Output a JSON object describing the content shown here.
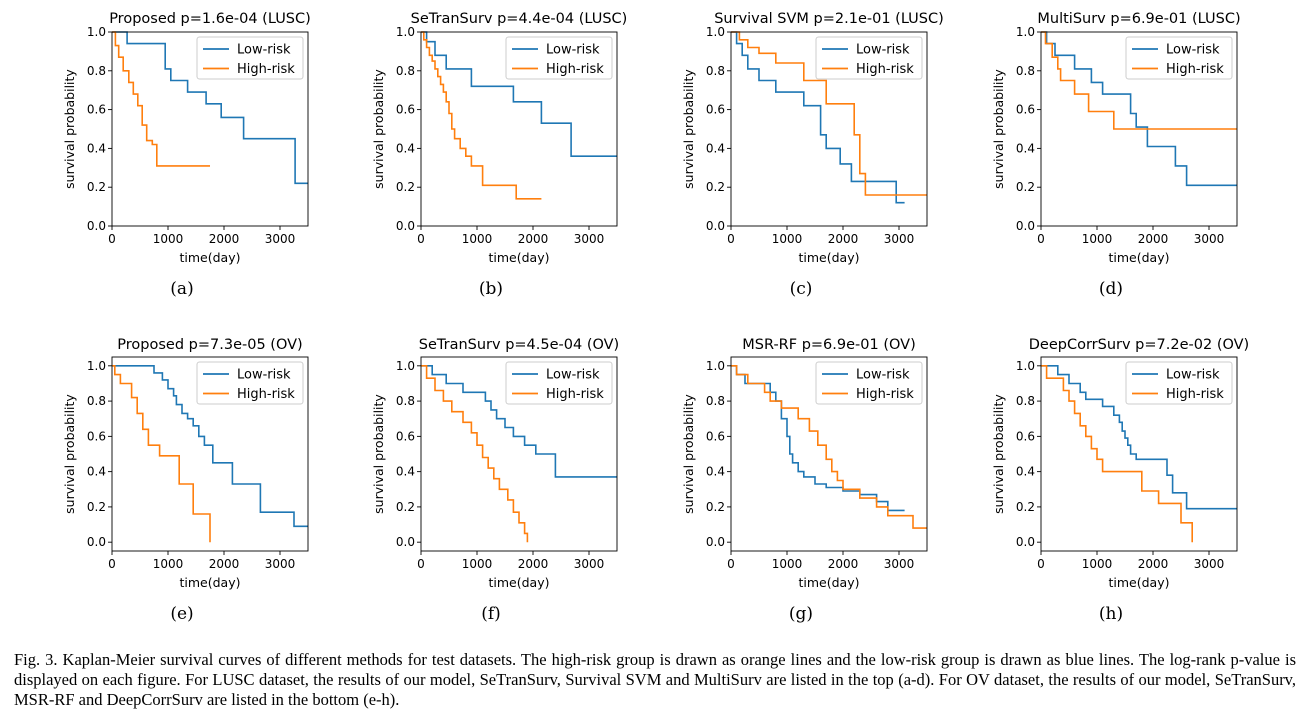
{
  "caption": "Fig. 3.  Kaplan-Meier survival curves of different methods for test datasets. The high-risk group is drawn as orange lines and the low-risk group is drawn as blue lines. The log-rank p-value is displayed on each figure. For LUSC dataset, the results of our model, SeTranSurv, Survival SVM and MultiSurv are listed in the top (a-d). For OV dataset, the results of our model, SeTranSurv, MSR-RF and DeepCorrSurv are listed in the bottom (e-h).",
  "colors": {
    "low_risk": "#1f77b4",
    "high_risk": "#ff7f0e"
  },
  "chart_data": [
    {
      "type": "line",
      "label": "(a)",
      "title": "Proposed   p=1.6e-04   (LUSC)",
      "xlabel": "time(day)",
      "ylabel": "survival probability",
      "xlim": [
        0,
        3500
      ],
      "ylim": [
        0,
        1.0
      ],
      "xticks": [
        0,
        1000,
        2000,
        3000
      ],
      "yticks": [
        "0.0",
        "0.2",
        "0.4",
        "0.6",
        "0.8",
        "1.0"
      ],
      "legend_position": "top-right",
      "series": [
        {
          "name": "Low-risk",
          "x": [
            0,
            270,
            950,
            1050,
            1350,
            1680,
            1950,
            2350,
            3270,
            3500
          ],
          "y": [
            1.0,
            0.94,
            0.81,
            0.75,
            0.69,
            0.63,
            0.56,
            0.45,
            0.22,
            0.22
          ]
        },
        {
          "name": "High-risk",
          "x": [
            0,
            60,
            120,
            200,
            300,
            380,
            460,
            540,
            620,
            720,
            800,
            1750
          ],
          "y": [
            1.0,
            0.93,
            0.87,
            0.8,
            0.74,
            0.68,
            0.62,
            0.52,
            0.44,
            0.42,
            0.31,
            0.31
          ]
        }
      ]
    },
    {
      "type": "line",
      "label": "(b)",
      "title": "SeTranSurv   p=4.4e-04   (LUSC)",
      "xlabel": "time(day)",
      "ylabel": "survival probability",
      "xlim": [
        0,
        3500
      ],
      "ylim": [
        0,
        1.0
      ],
      "xticks": [
        0,
        1000,
        2000,
        3000
      ],
      "yticks": [
        "0.0",
        "0.2",
        "0.4",
        "0.6",
        "0.8",
        "1.0"
      ],
      "legend_position": "top-right",
      "series": [
        {
          "name": "Low-risk",
          "x": [
            0,
            100,
            250,
            450,
            900,
            1650,
            2150,
            2680,
            3500
          ],
          "y": [
            1.0,
            0.95,
            0.88,
            0.81,
            0.72,
            0.64,
            0.53,
            0.36,
            0.36
          ]
        },
        {
          "name": "High-risk",
          "x": [
            0,
            50,
            100,
            150,
            200,
            250,
            300,
            350,
            400,
            450,
            500,
            550,
            600,
            700,
            800,
            900,
            1100,
            1700,
            2150
          ],
          "y": [
            1.0,
            0.96,
            0.92,
            0.88,
            0.85,
            0.81,
            0.77,
            0.73,
            0.69,
            0.64,
            0.58,
            0.5,
            0.45,
            0.4,
            0.36,
            0.31,
            0.21,
            0.14,
            0.14
          ]
        }
      ]
    },
    {
      "type": "line",
      "label": "(c)",
      "title": "Survival SVM p=2.1e-01 (LUSC)",
      "xlabel": "time(day)",
      "ylabel": "survival probability",
      "xlim": [
        0,
        3500
      ],
      "ylim": [
        0,
        1.0
      ],
      "xticks": [
        0,
        1000,
        2000,
        3000
      ],
      "yticks": [
        "0.0",
        "0.2",
        "0.4",
        "0.6",
        "0.8",
        "1.0"
      ],
      "legend_position": "top-right",
      "series": [
        {
          "name": "Low-risk",
          "x": [
            0,
            100,
            200,
            300,
            500,
            800,
            1300,
            1600,
            1700,
            1950,
            2150,
            2950,
            3100
          ],
          "y": [
            1.0,
            0.94,
            0.88,
            0.81,
            0.75,
            0.69,
            0.62,
            0.47,
            0.4,
            0.32,
            0.23,
            0.12,
            0.12
          ]
        },
        {
          "name": "High-risk",
          "x": [
            0,
            150,
            300,
            500,
            800,
            1300,
            1700,
            2200,
            2300,
            2400,
            3500
          ],
          "y": [
            1.0,
            0.96,
            0.92,
            0.89,
            0.84,
            0.75,
            0.63,
            0.47,
            0.27,
            0.16,
            0.16
          ]
        }
      ]
    },
    {
      "type": "line",
      "label": "(d)",
      "title": "MultiSurv    p=6.9e-01   (LUSC)",
      "xlabel": "time(day)",
      "ylabel": "survival probability",
      "xlim": [
        0,
        3500
      ],
      "ylim": [
        0,
        1.0
      ],
      "xticks": [
        0,
        1000,
        2000,
        3000
      ],
      "yticks": [
        "0.0",
        "0.2",
        "0.4",
        "0.6",
        "0.8",
        "1.0"
      ],
      "legend_position": "top-right",
      "series": [
        {
          "name": "Low-risk",
          "x": [
            0,
            100,
            250,
            600,
            900,
            1100,
            1600,
            1700,
            1900,
            2400,
            2600,
            3500
          ],
          "y": [
            1.0,
            0.94,
            0.88,
            0.81,
            0.74,
            0.68,
            0.58,
            0.51,
            0.41,
            0.31,
            0.21,
            0.21
          ]
        },
        {
          "name": "High-risk",
          "x": [
            0,
            80,
            200,
            300,
            350,
            600,
            850,
            1300,
            3500
          ],
          "y": [
            1.0,
            0.94,
            0.87,
            0.81,
            0.75,
            0.68,
            0.59,
            0.5,
            0.5
          ]
        }
      ]
    },
    {
      "type": "line",
      "label": "(e)",
      "title": "Proposed     p=7.3e-05       (OV)",
      "xlabel": "time(day)",
      "ylabel": "survival probability",
      "xlim": [
        0,
        3500
      ],
      "ylim": [
        0,
        1.0
      ],
      "xticks": [
        0,
        1000,
        2000,
        3000
      ],
      "yticks": [
        "0.0",
        "0.2",
        "0.4",
        "0.6",
        "0.8",
        "1.0"
      ],
      "legend_position": "top-right",
      "series": [
        {
          "name": "Low-risk",
          "x": [
            0,
            750,
            900,
            1000,
            1100,
            1150,
            1250,
            1350,
            1450,
            1550,
            1650,
            1800,
            2150,
            2650,
            3250,
            3500
          ],
          "y": [
            1.0,
            0.96,
            0.92,
            0.87,
            0.83,
            0.78,
            0.73,
            0.7,
            0.66,
            0.6,
            0.55,
            0.45,
            0.33,
            0.17,
            0.09,
            0.09
          ]
        },
        {
          "name": "High-risk",
          "x": [
            0,
            50,
            150,
            350,
            450,
            550,
            650,
            850,
            1200,
            1450,
            1750
          ],
          "y": [
            1.0,
            0.95,
            0.9,
            0.82,
            0.73,
            0.64,
            0.55,
            0.49,
            0.33,
            0.16,
            0.0
          ]
        }
      ]
    },
    {
      "type": "line",
      "label": "(f)",
      "title": "SeTranSurv    p=4.5e-04   (OV)",
      "xlabel": "time(day)",
      "ylabel": "survival probability",
      "xlim": [
        0,
        3500
      ],
      "ylim": [
        0,
        1.0
      ],
      "xticks": [
        0,
        1000,
        2000,
        3000
      ],
      "yticks": [
        "0.0",
        "0.2",
        "0.4",
        "0.6",
        "0.8",
        "1.0"
      ],
      "legend_position": "top-right",
      "series": [
        {
          "name": "Low-risk",
          "x": [
            0,
            200,
            450,
            750,
            1150,
            1250,
            1350,
            1500,
            1650,
            1850,
            2050,
            2400,
            3500
          ],
          "y": [
            1.0,
            0.95,
            0.9,
            0.85,
            0.8,
            0.75,
            0.7,
            0.65,
            0.6,
            0.55,
            0.5,
            0.37,
            0.37
          ]
        },
        {
          "name": "High-risk",
          "x": [
            0,
            100,
            250,
            400,
            550,
            750,
            900,
            1000,
            1100,
            1200,
            1300,
            1400,
            1550,
            1650,
            1750,
            1850,
            1900
          ],
          "y": [
            1.0,
            0.93,
            0.86,
            0.8,
            0.74,
            0.68,
            0.62,
            0.55,
            0.48,
            0.42,
            0.36,
            0.3,
            0.24,
            0.17,
            0.11,
            0.05,
            0.0
          ]
        }
      ]
    },
    {
      "type": "line",
      "label": "(g)",
      "title": "MSR-RF          p=6.9e-01        (OV)",
      "xlabel": "time(day)",
      "ylabel": "survival probability",
      "xlim": [
        0,
        3500
      ],
      "ylim": [
        0,
        1.0
      ],
      "xticks": [
        0,
        1000,
        2000,
        3000
      ],
      "yticks": [
        "0.0",
        "0.2",
        "0.4",
        "0.6",
        "0.8",
        "1.0"
      ],
      "legend_position": "top-right",
      "series": [
        {
          "name": "Low-risk",
          "x": [
            0,
            100,
            250,
            700,
            800,
            900,
            1000,
            1050,
            1100,
            1200,
            1300,
            1500,
            1700,
            2000,
            2300,
            2600,
            2800,
            3100
          ],
          "y": [
            1.0,
            0.95,
            0.9,
            0.85,
            0.8,
            0.7,
            0.6,
            0.5,
            0.45,
            0.4,
            0.37,
            0.33,
            0.31,
            0.29,
            0.27,
            0.23,
            0.18,
            0.18
          ]
        },
        {
          "name": "High-risk",
          "x": [
            0,
            100,
            300,
            600,
            700,
            900,
            1200,
            1400,
            1550,
            1700,
            1800,
            1900,
            2000,
            2300,
            2600,
            2800,
            3250,
            3500
          ],
          "y": [
            1.0,
            0.95,
            0.9,
            0.85,
            0.8,
            0.76,
            0.7,
            0.63,
            0.55,
            0.47,
            0.4,
            0.35,
            0.3,
            0.25,
            0.2,
            0.15,
            0.08,
            0.08
          ]
        }
      ]
    },
    {
      "type": "line",
      "label": "(h)",
      "title": "DeepCorrSurv p=7.2e-02 (OV)",
      "xlabel": "time(day)",
      "ylabel": "survival probability",
      "xlim": [
        0,
        3500
      ],
      "ylim": [
        0,
        1.0
      ],
      "xticks": [
        0,
        1000,
        2000,
        3000
      ],
      "yticks": [
        "0.0",
        "0.2",
        "0.4",
        "0.6",
        "0.8",
        "1.0"
      ],
      "legend_position": "top-right",
      "series": [
        {
          "name": "Low-risk",
          "x": [
            0,
            300,
            500,
            700,
            800,
            1100,
            1300,
            1400,
            1450,
            1500,
            1550,
            1600,
            1700,
            1800,
            2250,
            2350,
            2600,
            3500
          ],
          "y": [
            1.0,
            0.95,
            0.9,
            0.85,
            0.81,
            0.77,
            0.72,
            0.68,
            0.63,
            0.59,
            0.55,
            0.5,
            0.47,
            0.47,
            0.38,
            0.28,
            0.19,
            0.19
          ]
        },
        {
          "name": "High-risk",
          "x": [
            0,
            100,
            400,
            500,
            600,
            700,
            800,
            900,
            1000,
            1100,
            1250,
            1800,
            2100,
            2500,
            2700
          ],
          "y": [
            1.0,
            0.93,
            0.86,
            0.8,
            0.73,
            0.66,
            0.6,
            0.53,
            0.47,
            0.4,
            0.4,
            0.29,
            0.22,
            0.11,
            0.0
          ]
        }
      ]
    }
  ]
}
